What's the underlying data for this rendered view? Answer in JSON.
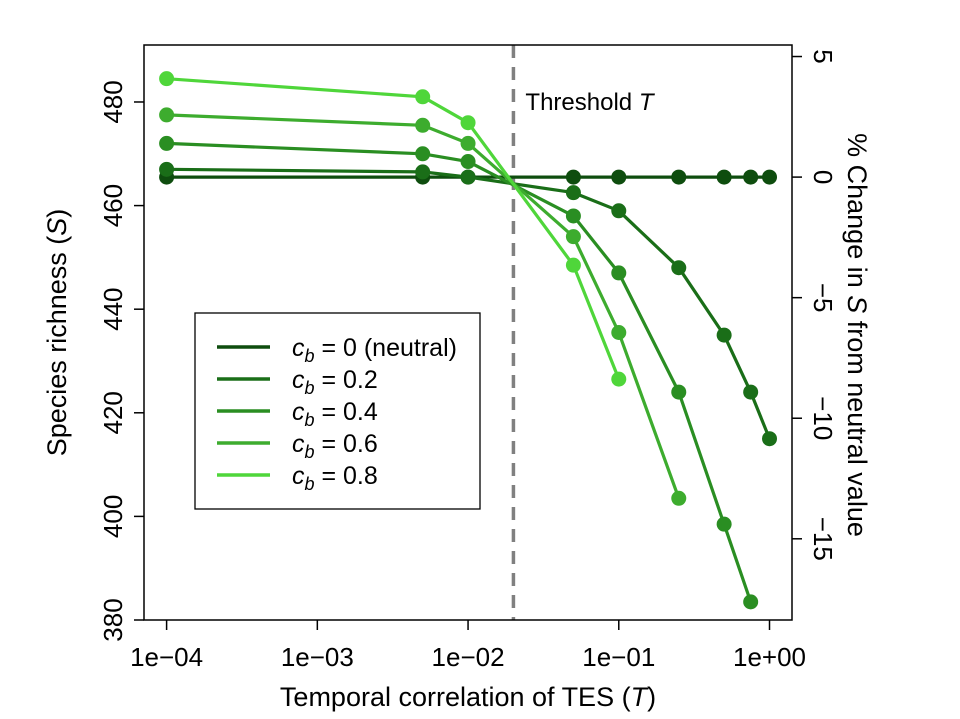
{
  "chart_data": {
    "type": "line",
    "title": "",
    "xlabel_prefix": "Temporal correlation of TES (",
    "xlabel_var": "T",
    "xlabel_suffix": ")",
    "ylabel_prefix": "Species richness (",
    "ylabel_var": "S",
    "ylabel_suffix": ")",
    "y2label_prefix": "% Change in ",
    "y2label_var": "S",
    "y2label_suffix": " from neutral value",
    "x_scale": "log",
    "xlim": [
      7.08e-05,
      1.41
    ],
    "ylim": [
      380,
      491
    ],
    "x_ticks": [
      0.0001,
      0.001,
      0.01,
      0.1,
      1
    ],
    "x_tick_labels": [
      "1e−04",
      "1e−03",
      "1e−02",
      "1e−01",
      "1e+00"
    ],
    "y_ticks": [
      380,
      400,
      420,
      440,
      460,
      480
    ],
    "y_tick_labels": [
      "380",
      "400",
      "420",
      "440",
      "460",
      "480"
    ],
    "y2_ticks": [
      5,
      0,
      -5,
      -10,
      -15
    ],
    "y2_tick_labels": [
      "5",
      "0",
      "−5",
      "−10",
      "−15"
    ],
    "y2_reference": 465.5,
    "threshold": {
      "x": 0.02,
      "label_prefix": "Threshold ",
      "label_var": "T",
      "color": "#808080"
    },
    "series": [
      {
        "name_var": "c",
        "name_sub": "b",
        "name_rest": " = 0 (neutral)",
        "color": "#0e4d0e",
        "x": [
          0.0001,
          0.005,
          0.01,
          0.05,
          0.1,
          0.25,
          0.5,
          0.75,
          1.0
        ],
        "y": [
          465.5,
          465.5,
          465.5,
          465.5,
          465.5,
          465.5,
          465.5,
          465.5,
          465.5
        ]
      },
      {
        "name_var": "c",
        "name_sub": "b",
        "name_rest": " = 0.2",
        "color": "#1a6e18",
        "x": [
          0.0001,
          0.005,
          0.01,
          0.05,
          0.1,
          0.25,
          0.5,
          0.75,
          1.0
        ],
        "y": [
          467,
          466.5,
          465.5,
          462.5,
          459,
          448,
          435,
          424,
          415
        ]
      },
      {
        "name_var": "c",
        "name_sub": "b",
        "name_rest": " = 0.4",
        "color": "#2a8e22",
        "x": [
          0.0001,
          0.005,
          0.01,
          0.05,
          0.1,
          0.25,
          0.5,
          0.75
        ],
        "y": [
          472,
          470,
          468.5,
          458,
          447,
          424,
          398.5,
          383.5
        ]
      },
      {
        "name_var": "c",
        "name_sub": "b",
        "name_rest": " = 0.6",
        "color": "#3dac2e",
        "x": [
          0.0001,
          0.005,
          0.01,
          0.05,
          0.1,
          0.25
        ],
        "y": [
          477.5,
          475.5,
          472,
          454,
          435.5,
          403.5
        ]
      },
      {
        "name_var": "c",
        "name_sub": "b",
        "name_rest": " = 0.8",
        "color": "#4fd63a",
        "x": [
          0.0001,
          0.005,
          0.01,
          0.05,
          0.1
        ],
        "y": [
          484.5,
          481,
          476,
          448.5,
          426.5
        ]
      }
    ],
    "legend_position": "middle-left",
    "grid": false
  }
}
